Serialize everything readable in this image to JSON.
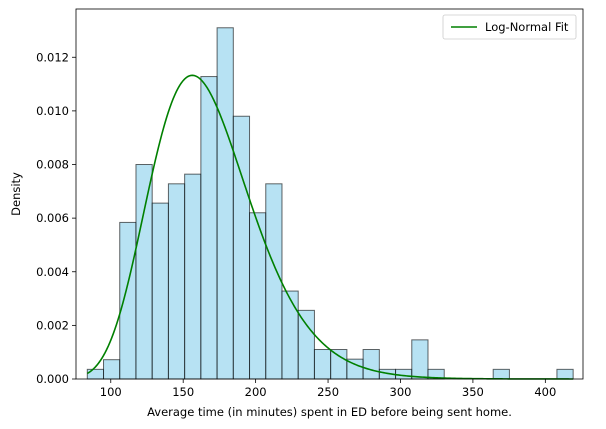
{
  "chart_data": {
    "type": "histogram",
    "xlabel": "Average time (in minutes) spent in ED before being sent home.",
    "ylabel": "Density",
    "xlim": [
      76,
      426
    ],
    "ylim": [
      0,
      0.0138
    ],
    "x_ticks": [
      100,
      150,
      200,
      250,
      300,
      350,
      400
    ],
    "y_ticks": [
      0.0,
      0.002,
      0.004,
      0.006,
      0.008,
      0.01,
      0.012
    ],
    "y_tick_labels": [
      "0.000",
      "0.002",
      "0.004",
      "0.006",
      "0.008",
      "0.010",
      "0.012"
    ],
    "bins": [
      {
        "x0": 83.8,
        "x1": 95.0,
        "density": 0.00036
      },
      {
        "x0": 95.0,
        "x1": 106.2,
        "density": 0.00072
      },
      {
        "x0": 106.2,
        "x1": 117.4,
        "density": 0.00584
      },
      {
        "x0": 117.4,
        "x1": 128.6,
        "density": 0.008
      },
      {
        "x0": 128.6,
        "x1": 139.8,
        "density": 0.00656
      },
      {
        "x0": 139.8,
        "x1": 151.0,
        "density": 0.00728
      },
      {
        "x0": 151.0,
        "x1": 162.2,
        "density": 0.00764
      },
      {
        "x0": 162.2,
        "x1": 173.4,
        "density": 0.01128
      },
      {
        "x0": 173.4,
        "x1": 184.6,
        "density": 0.0131
      },
      {
        "x0": 184.6,
        "x1": 195.8,
        "density": 0.0098
      },
      {
        "x0": 195.8,
        "x1": 207.0,
        "density": 0.0062
      },
      {
        "x0": 207.0,
        "x1": 218.2,
        "density": 0.00728
      },
      {
        "x0": 218.2,
        "x1": 229.4,
        "density": 0.00328
      },
      {
        "x0": 229.4,
        "x1": 240.6,
        "density": 0.00256
      },
      {
        "x0": 240.6,
        "x1": 251.8,
        "density": 0.0011
      },
      {
        "x0": 251.8,
        "x1": 263.0,
        "density": 0.0011
      },
      {
        "x0": 263.0,
        "x1": 274.2,
        "density": 0.00074
      },
      {
        "x0": 274.2,
        "x1": 285.4,
        "density": 0.0011
      },
      {
        "x0": 285.4,
        "x1": 296.6,
        "density": 0.00036
      },
      {
        "x0": 296.6,
        "x1": 307.8,
        "density": 0.00036
      },
      {
        "x0": 307.8,
        "x1": 319.0,
        "density": 0.00146
      },
      {
        "x0": 319.0,
        "x1": 330.2,
        "density": 0.00036
      },
      {
        "x0": 364.0,
        "x1": 375.2,
        "density": 0.00036
      },
      {
        "x0": 408.0,
        "x1": 419.2,
        "density": 0.00036
      }
    ],
    "bar_color": "#87ceeb",
    "bar_edge_color": "#000000",
    "series": [
      {
        "name": "Log-Normal Fit",
        "color": "#008000",
        "curve": {
          "kind": "lognormal",
          "mu": 5.1,
          "sigma": 0.22
        },
        "x_range": [
          83.8,
          419.2
        ]
      }
    ],
    "grid": false,
    "legend_placement": "top-right"
  }
}
